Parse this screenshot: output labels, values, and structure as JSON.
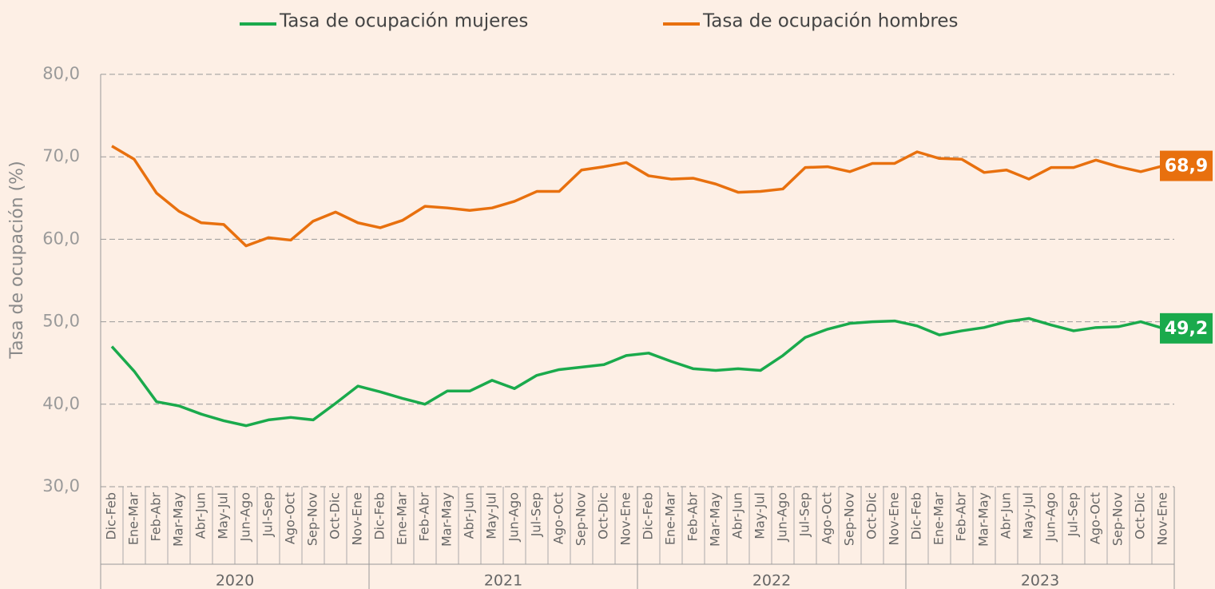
{
  "chart_data": {
    "type": "line",
    "y_label": "Tasa de ocupación (%)",
    "categories": [
      "Dic-Feb",
      "Ene-Mar",
      "Feb-Abr",
      "Mar-May",
      "Abr-Jun",
      "May-Jul",
      "Jun-Ago",
      "Jul-Sep",
      "Ago-Oct",
      "Sep-Nov",
      "Oct-Dic",
      "Nov-Ene",
      "Dic-Feb",
      "Ene-Mar",
      "Feb-Abr",
      "Mar-May",
      "Abr-Jun",
      "May-Jul",
      "Jun-Ago",
      "Jul-Sep",
      "Ago-Oct",
      "Sep-Nov",
      "Oct-Dic",
      "Nov-Ene",
      "Dic-Feb",
      "Ene-Mar",
      "Feb-Abr",
      "Mar-May",
      "Abr-Jun",
      "May-Jul",
      "Jun-Ago",
      "Jul-Sep",
      "Ago-Oct",
      "Sep-Nov",
      "Oct-Dic",
      "Nov-Ene",
      "Dic-Feb",
      "Ene-Mar",
      "Feb-Abr",
      "Mar-May",
      "Abr-Jun",
      "May-Jul",
      "Jun-Ago",
      "Jul-Sep",
      "Ago-Oct",
      "Sep-Nov",
      "Oct-Dic",
      "Nov-Ene"
    ],
    "years": [
      "2020",
      "2021",
      "2022",
      "2023"
    ],
    "series": [
      {
        "name": "Tasa de ocupación mujeres",
        "color": "#1aaa4c",
        "values": [
          47.0,
          44.0,
          40.3,
          39.8,
          38.8,
          38.0,
          37.4,
          38.1,
          38.4,
          38.1,
          40.1,
          42.2,
          41.5,
          40.7,
          40.0,
          41.6,
          41.6,
          42.9,
          41.9,
          43.5,
          44.2,
          44.5,
          44.8,
          45.9,
          46.2,
          45.2,
          44.3,
          44.1,
          44.3,
          44.1,
          45.9,
          48.1,
          49.1,
          49.8,
          50.0,
          50.1,
          49.5,
          48.4,
          48.9,
          49.3,
          50.0,
          50.4,
          49.6,
          48.9,
          49.3,
          49.4,
          50.0,
          49.2
        ],
        "value_labels": [
          null,
          null,
          null,
          null,
          null,
          null,
          null,
          null,
          null,
          null,
          null,
          null,
          null,
          null,
          null,
          null,
          null,
          null,
          null,
          null,
          null,
          null,
          null,
          null,
          null,
          null,
          null,
          null,
          null,
          null,
          null,
          null,
          null,
          null,
          null,
          null,
          null,
          null,
          null,
          null,
          null,
          null,
          null,
          null,
          null,
          null,
          null,
          "49,2"
        ]
      },
      {
        "name": "Tasa de ocupación hombres",
        "color": "#e8700e",
        "values": [
          71.3,
          69.7,
          65.6,
          63.4,
          62.0,
          61.8,
          59.2,
          60.2,
          59.9,
          62.2,
          63.3,
          62.0,
          61.4,
          62.3,
          64.0,
          63.8,
          63.5,
          63.8,
          64.6,
          65.8,
          65.8,
          68.4,
          68.8,
          69.3,
          67.7,
          67.3,
          67.4,
          66.7,
          65.7,
          65.8,
          66.1,
          68.7,
          68.8,
          68.2,
          69.2,
          69.2,
          70.6,
          69.8,
          69.7,
          68.1,
          68.4,
          67.3,
          68.7,
          68.7,
          69.6,
          68.8,
          68.2,
          68.9
        ],
        "value_labels": [
          null,
          null,
          null,
          null,
          null,
          null,
          null,
          null,
          null,
          null,
          null,
          null,
          null,
          null,
          null,
          null,
          null,
          null,
          null,
          null,
          null,
          null,
          null,
          null,
          null,
          null,
          null,
          null,
          null,
          null,
          null,
          null,
          null,
          null,
          null,
          null,
          null,
          null,
          null,
          null,
          null,
          null,
          null,
          null,
          null,
          null,
          null,
          "68,9"
        ]
      }
    ],
    "ylim": [
      30,
      80
    ],
    "yticks": [
      {
        "value": 30,
        "label": "30,0"
      },
      {
        "value": 40,
        "label": "40,0"
      },
      {
        "value": 50,
        "label": "50,0"
      },
      {
        "value": 60,
        "label": "60,0"
      },
      {
        "value": 70,
        "label": "70,0"
      },
      {
        "value": 80,
        "label": "80,0"
      }
    ],
    "grid": true,
    "legend": "top"
  }
}
